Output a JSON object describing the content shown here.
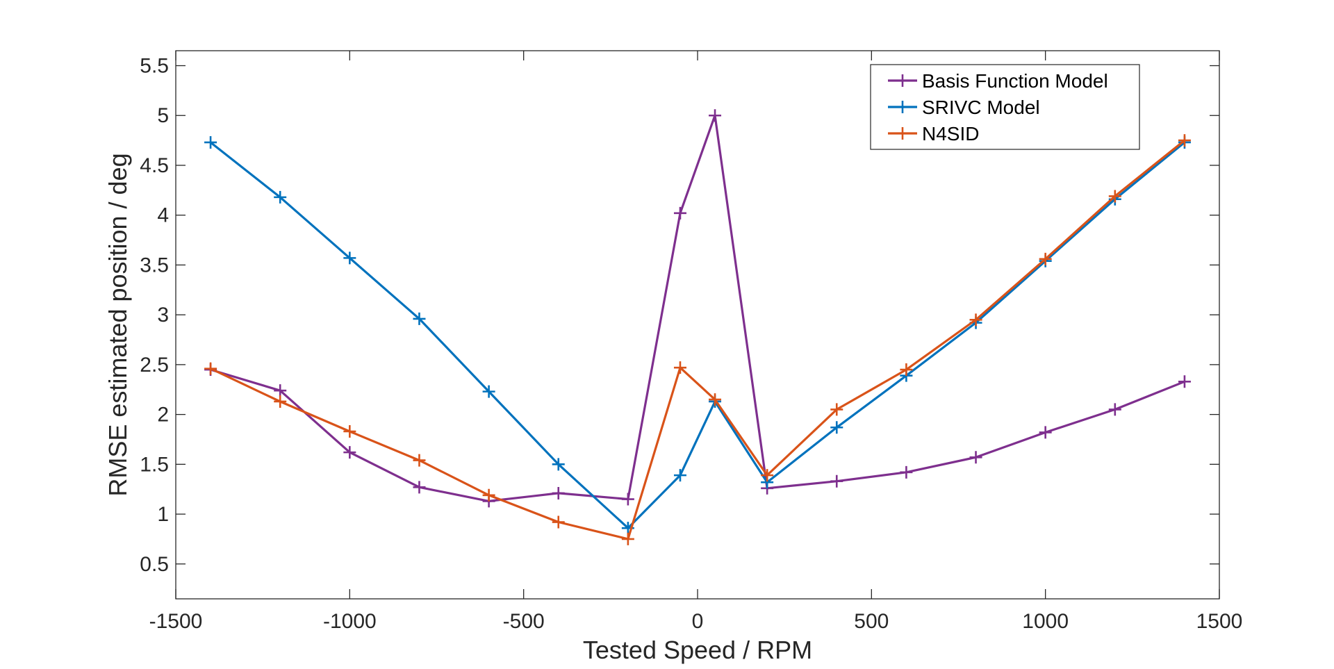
{
  "chart_data": {
    "type": "line",
    "title": "",
    "xlabel": "Tested Speed / RPM",
    "ylabel": "RMSE estimated position / deg",
    "xlim": [
      -1500,
      1500
    ],
    "ylim": [
      0.15,
      5.65
    ],
    "xticks": [
      -1500,
      -1000,
      -500,
      0,
      500,
      1000,
      1500
    ],
    "xtick_labels": [
      "-1500",
      "-1000",
      "-500",
      "0",
      "500",
      "1000",
      "1500"
    ],
    "yticks": [
      0.5,
      1,
      1.5,
      2,
      2.5,
      3,
      3.5,
      4,
      4.5,
      5,
      5.5
    ],
    "ytick_labels": [
      "0.5",
      "1",
      "1.5",
      "2",
      "2.5",
      "3",
      "3.5",
      "4",
      "4.5",
      "5",
      "5.5"
    ],
    "grid": false,
    "legend_position": "top-right",
    "x": [
      -1400,
      -1200,
      -1000,
      -800,
      -600,
      -400,
      -200,
      -50,
      50,
      200,
      400,
      600,
      800,
      1000,
      1200,
      1400
    ],
    "series": [
      {
        "name": "Basis Function Model",
        "color": "#7E2F8E",
        "marker": "plus",
        "values": [
          2.45,
          2.24,
          1.62,
          1.27,
          1.13,
          1.21,
          1.15,
          4.02,
          5.0,
          1.26,
          1.33,
          1.42,
          1.57,
          1.82,
          2.05,
          2.33
        ]
      },
      {
        "name": "SRIVC Model",
        "color": "#0072BD",
        "marker": "plus",
        "values": [
          4.73,
          4.18,
          3.57,
          2.96,
          2.23,
          1.5,
          0.86,
          1.39,
          2.13,
          1.32,
          1.87,
          2.39,
          2.92,
          3.54,
          4.16,
          4.73
        ]
      },
      {
        "name": "N4SID",
        "color": "#D95319",
        "marker": "plus",
        "values": [
          2.46,
          2.13,
          1.83,
          1.54,
          1.19,
          0.92,
          0.75,
          2.47,
          2.15,
          1.39,
          2.05,
          2.45,
          2.95,
          3.56,
          4.19,
          4.75
        ]
      }
    ]
  }
}
